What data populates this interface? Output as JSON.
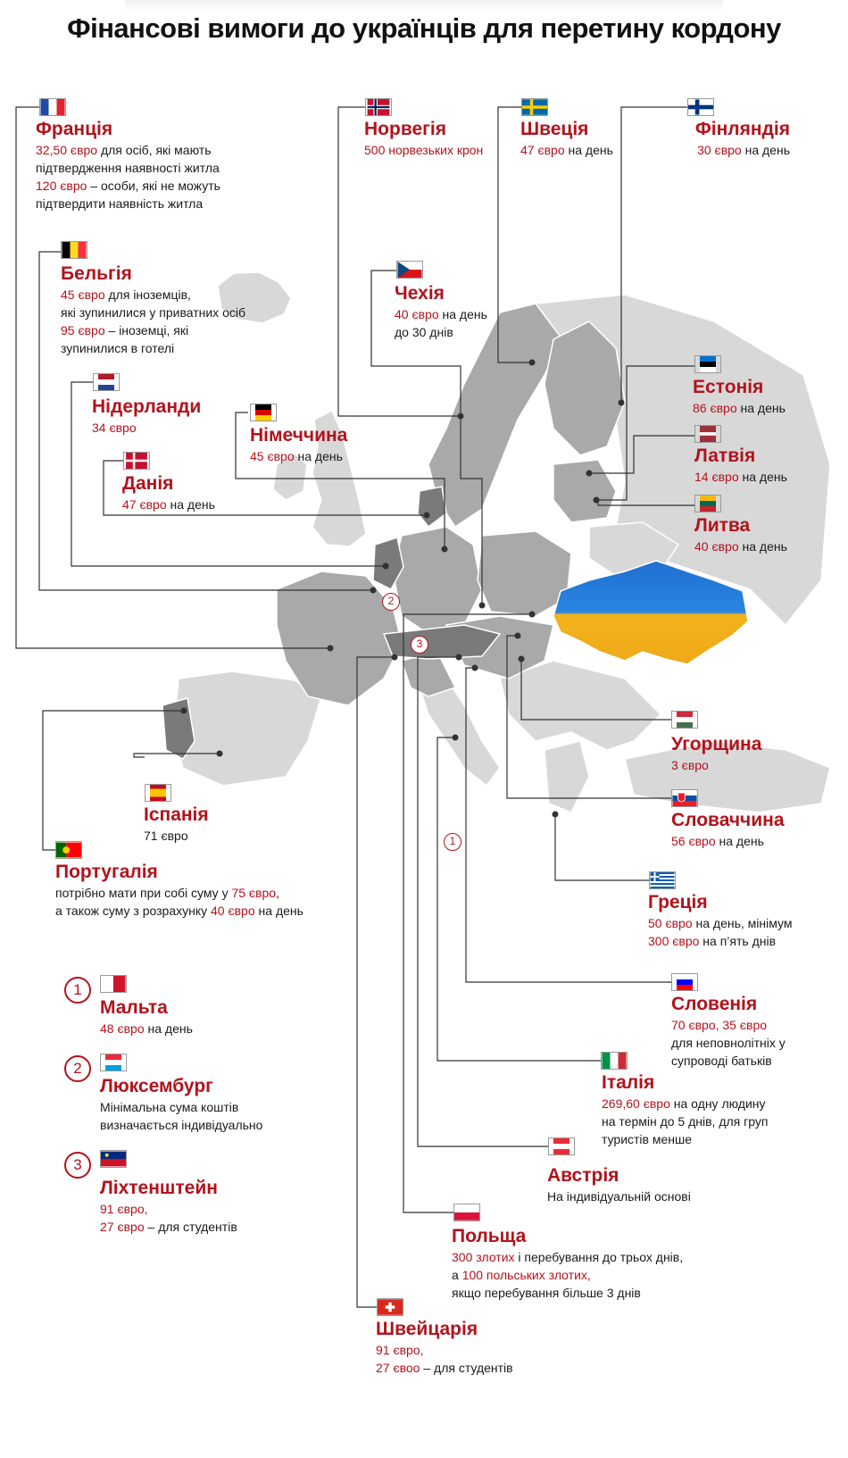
{
  "title": "Фінансові вимоги до українців для перетину кордону",
  "map": {
    "markers": [
      "1",
      "2",
      "3"
    ],
    "colors": {
      "accent": "#b3121c",
      "land_light": "#d8d8d8",
      "land_mid": "#a9a9a9",
      "land_dark": "#7a7a7a",
      "leader": "#333333",
      "ukraine_blue": "#1f6fd1",
      "ukraine_yellow": "#f2b41c"
    }
  },
  "countries": {
    "france": {
      "name": "Франція",
      "l1a": "32,50 євро",
      "l1b": " для осіб, які мають",
      "l2": "підтвердження наявності житла",
      "l3a": "120 євро",
      "l3b": " – особи, які не можуть",
      "l4": "підтвердити наявність житла",
      "flag_icon": "france-flag-icon"
    },
    "norway": {
      "name": "Норвегія",
      "l1a": "500 норвезьких крон",
      "flag_icon": "norway-flag-icon"
    },
    "sweden": {
      "name": "Швеція",
      "l1a": "47 євро",
      "l1b": " на день",
      "flag_icon": "sweden-flag-icon"
    },
    "finland": {
      "name": "Фінляндія",
      "l1a": "30 євро",
      "l1b": " на день",
      "flag_icon": "finland-flag-icon"
    },
    "belgium": {
      "name": "Бельгія",
      "l1a": "45 євро",
      "l1b": " для іноземців,",
      "l2": "які зупинилися у приватних осіб",
      "l3a": "95 євро",
      "l3b": " – іноземці, які",
      "l4": "зупинилися в готелі",
      "flag_icon": "belgium-flag-icon"
    },
    "czechia": {
      "name": "Чехія",
      "l1a": "40 євро",
      "l1b": " на день",
      "l2": "до 30 днів",
      "flag_icon": "czechia-flag-icon"
    },
    "netherlands": {
      "name": "Нідерланди",
      "l1a": "34 євро",
      "flag_icon": "netherlands-flag-icon"
    },
    "germany": {
      "name": "Німеччина",
      "l1a": "45 євро",
      "l1b": " на день",
      "flag_icon": "germany-flag-icon"
    },
    "estonia": {
      "name": "Естонія",
      "l1a": "86 євро",
      "l1b": " на день",
      "flag_icon": "estonia-flag-icon"
    },
    "denmark": {
      "name": "Данія",
      "l1a": "47 євро",
      "l1b": " на день",
      "flag_icon": "denmark-flag-icon"
    },
    "latvia": {
      "name": "Латвія",
      "l1a": "14 євро",
      "l1b": " на день",
      "flag_icon": "latvia-flag-icon"
    },
    "lithuania": {
      "name": "Литва",
      "l1a": "40 євро",
      "l1b": " на день",
      "flag_icon": "lithuania-flag-icon"
    },
    "hungary": {
      "name": "Угорщина",
      "l1a": "3 євро",
      "flag_icon": "hungary-flag-icon"
    },
    "spain": {
      "name": "Іспанія",
      "l1b": "71 євро",
      "flag_icon": "spain-flag-icon"
    },
    "slovakia": {
      "name": "Словаччина",
      "l1a": "56 євро",
      "l1b": " на день",
      "flag_icon": "slovakia-flag-icon"
    },
    "portugal": {
      "name": "Португалія",
      "l1b": "потрібно мати при собі суму у ",
      "l1c": "75 євро",
      "l1d": ",",
      "l2b": "а також суму з розрахунку ",
      "l2c": "40 євро",
      "l2d": " на день",
      "flag_icon": "portugal-flag-icon"
    },
    "greece": {
      "name": "Греція",
      "l1a": "50 євро",
      "l1b": " на день, мінімум",
      "l2a": "300 євро",
      "l2b": " на п’ять днів",
      "flag_icon": "greece-flag-icon"
    },
    "malta": {
      "badge": "1",
      "name": "Мальта",
      "l1a": "48 євро",
      "l1b": " на день",
      "flag_icon": "malta-flag-icon"
    },
    "slovenia": {
      "name": "Словенія",
      "l1a": "70 євро, 35 євро",
      "l2": "для неповнолітніх у",
      "l3": "супроводі батьків",
      "flag_icon": "slovenia-flag-icon"
    },
    "luxembourg": {
      "badge": "2",
      "name": "Люксембург",
      "l1": "Мінімальна сума коштів",
      "l2": "визначається індивідуально",
      "flag_icon": "luxembourg-flag-icon"
    },
    "italy": {
      "name": "Італія",
      "l1a": "269,60 євро",
      "l1b": " на одну людину",
      "l2": "на термін до 5 днів, для груп",
      "l3": "туристів менше",
      "flag_icon": "italy-flag-icon"
    },
    "austria": {
      "name": "Австрія",
      "l1": "На індивідуальній основі",
      "flag_icon": "austria-flag-icon"
    },
    "liechtenstein": {
      "badge": "3",
      "name": "Ліхтенштейн",
      "l1a": "91 євро,",
      "l2a": "27 євро",
      "l2b": " – для студентів",
      "flag_icon": "liechtenstein-flag-icon"
    },
    "poland": {
      "name": "Польща",
      "l1a": "300 злотих",
      "l1b": " і перебування до трьох днів,",
      "l2b": "а ",
      "l2c": "100 польських злотих,",
      "l3": "якщо перебування більше 3 днів",
      "flag_icon": "poland-flag-icon"
    },
    "switzerland": {
      "name": "Швейцарія",
      "l1a": "91 євро,",
      "l2a": "27 євоо",
      "l2b": " – для студентів",
      "flag_icon": "switzerland-flag-icon"
    }
  }
}
